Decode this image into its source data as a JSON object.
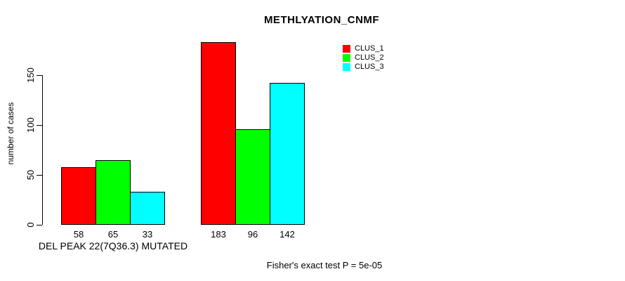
{
  "chart_data": {
    "type": "bar",
    "title": "METHLYATION_CNMF",
    "ylabel": "number of cases",
    "xlabel": "DEL PEAK 22(7Q36.3) MUTATED",
    "annotation": "Fisher's exact test P = 5e-05",
    "series": [
      {
        "name": "CLUS_1",
        "color": "#ff0000",
        "values": [
          58,
          183
        ]
      },
      {
        "name": "CLUS_2",
        "color": "#00ff00",
        "values": [
          65,
          96
        ]
      },
      {
        "name": "CLUS_3",
        "color": "#00ffff",
        "values": [
          33,
          142
        ]
      }
    ],
    "group_count": 2,
    "bar_value_labels": [
      [
        58,
        65,
        33
      ],
      [
        183,
        96,
        142
      ]
    ],
    "yticks": [
      0,
      50,
      100,
      150
    ],
    "ylim": [
      0,
      150
    ],
    "grid": false,
    "legend_position": "top-right",
    "bar_border_color": "#000000",
    "text_color": "#000000",
    "background_color": "#ffffff"
  }
}
